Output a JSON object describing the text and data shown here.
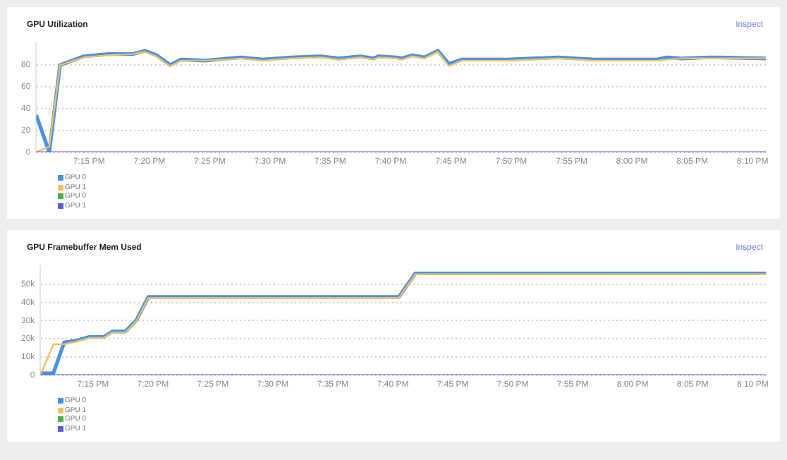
{
  "chart_data": [
    {
      "type": "line",
      "title": "GPU Utilization",
      "annotations": [
        "Inspect"
      ],
      "xlim": [
        19.177,
        20.185
      ],
      "xticks": [
        {
          "value": 19.25,
          "label": "7:15 PM"
        },
        {
          "value": 19.3333,
          "label": "7:20 PM"
        },
        {
          "value": 19.4167,
          "label": "7:25 PM"
        },
        {
          "value": 19.5,
          "label": "7:30 PM"
        },
        {
          "value": 19.5833,
          "label": "7:35 PM"
        },
        {
          "value": 19.6667,
          "label": "7:40 PM"
        },
        {
          "value": 19.75,
          "label": "7:45 PM"
        },
        {
          "value": 19.8333,
          "label": "7:50 PM"
        },
        {
          "value": 19.9167,
          "label": "7:55 PM"
        },
        {
          "value": 20,
          "label": "8:00 PM"
        },
        {
          "value": 20.0833,
          "label": "8:05 PM"
        },
        {
          "value": 20.1667,
          "label": "8:10 PM"
        }
      ],
      "ylim": [
        0,
        100
      ],
      "yticks": [
        0,
        20,
        40,
        60,
        80
      ],
      "grid": "y",
      "legend": "bottom left",
      "marker": "none",
      "line_style": "solid",
      "x": [
        19.177,
        19.195,
        19.21,
        19.243,
        19.277,
        19.31,
        19.327,
        19.343,
        19.362,
        19.377,
        19.41,
        19.443,
        19.46,
        19.49,
        19.53,
        19.57,
        19.595,
        19.625,
        19.643,
        19.65,
        19.675,
        19.682,
        19.697,
        19.713,
        19.732,
        19.747,
        19.765,
        19.828,
        19.898,
        19.948,
        20.035,
        20.048,
        20.068,
        20.108,
        20.185
      ],
      "series": [
        {
          "name": "GPU 0",
          "color": "#4a90e2",
          "values": [
            34,
            0,
            80,
            88,
            90,
            90,
            93,
            89,
            80,
            85,
            84,
            86,
            87,
            85,
            87,
            88,
            86,
            88,
            86,
            88,
            87,
            86,
            89,
            87,
            93,
            81,
            85,
            85,
            87,
            85,
            85,
            87,
            86,
            87,
            86
          ]
        },
        {
          "name": "GPU 1",
          "color": "#f0c060",
          "values": [
            0,
            5,
            80,
            87,
            89,
            90,
            92,
            88,
            79,
            84,
            84,
            85,
            86,
            84,
            86,
            87,
            85,
            87,
            85,
            87,
            86,
            85,
            88,
            86,
            92,
            79,
            84,
            84,
            86,
            84,
            84,
            85,
            86,
            86,
            86
          ]
        },
        {
          "name": "GPU 0",
          "color": "#4caf50",
          "values": [
            null,
            null,
            null,
            null,
            null,
            null,
            null,
            null,
            null,
            null,
            null,
            null,
            null,
            null,
            null,
            null,
            null,
            null,
            null,
            null,
            null,
            null,
            null,
            null,
            null,
            null,
            null,
            null,
            null,
            null,
            null,
            null,
            null,
            null,
            null
          ]
        },
        {
          "name": "GPU 1",
          "color": "#5b5bd6",
          "values": [
            0,
            0,
            0,
            0,
            0,
            0,
            0,
            0,
            0,
            0,
            0,
            0,
            0,
            0,
            0,
            0,
            0,
            0,
            0,
            0,
            0,
            0,
            0,
            0,
            0,
            0,
            0,
            0,
            0,
            0,
            0,
            0,
            0,
            0,
            0
          ]
        }
      ]
    },
    {
      "type": "line",
      "title": "GPU Framebuffer Mem Used",
      "annotations": [
        "Inspect"
      ],
      "xlim": [
        19.177,
        20.185
      ],
      "xticks": [
        {
          "value": 19.25,
          "label": "7:15 PM"
        },
        {
          "value": 19.3333,
          "label": "7:20 PM"
        },
        {
          "value": 19.4167,
          "label": "7:25 PM"
        },
        {
          "value": 19.5,
          "label": "7:30 PM"
        },
        {
          "value": 19.5833,
          "label": "7:35 PM"
        },
        {
          "value": 19.6667,
          "label": "7:40 PM"
        },
        {
          "value": 19.75,
          "label": "7:45 PM"
        },
        {
          "value": 19.8333,
          "label": "7:50 PM"
        },
        {
          "value": 19.9167,
          "label": "7:55 PM"
        },
        {
          "value": 20,
          "label": "8:00 PM"
        },
        {
          "value": 20.0833,
          "label": "8:05 PM"
        },
        {
          "value": 20.1667,
          "label": "8:10 PM"
        }
      ],
      "ylim": [
        0,
        60000
      ],
      "yticks": [
        0,
        {
          "value": 10000,
          "label": "10k"
        },
        {
          "value": 20000,
          "label": "20k"
        },
        {
          "value": 30000,
          "label": "30k"
        },
        {
          "value": 40000,
          "label": "40k"
        },
        {
          "value": 50000,
          "label": "50k"
        }
      ],
      "grid": "y",
      "legend": "bottom left",
      "marker": "none",
      "line_style": "solid",
      "x": [
        19.177,
        19.195,
        19.21,
        19.227,
        19.245,
        19.265,
        19.277,
        19.295,
        19.31,
        19.327,
        19.675,
        19.698,
        20.185
      ],
      "series": [
        {
          "name": "GPU 0",
          "color": "#4a90e2",
          "values": [
            1000,
            1000,
            18000,
            19000,
            21000,
            21000,
            24000,
            24000,
            30000,
            43000,
            43000,
            56000,
            56000
          ]
        },
        {
          "name": "GPU 1",
          "color": "#f0c060",
          "values": [
            0,
            17000,
            17000,
            18500,
            20500,
            20500,
            23500,
            23500,
            29500,
            42500,
            42500,
            55500,
            55500
          ]
        },
        {
          "name": "GPU 0",
          "color": "#4caf50",
          "values": [
            null,
            null,
            null,
            null,
            null,
            null,
            null,
            null,
            null,
            null,
            null,
            null,
            null
          ]
        },
        {
          "name": "GPU 1",
          "color": "#5b5bd6",
          "values": [
            0,
            0,
            0,
            0,
            0,
            0,
            0,
            0,
            0,
            0,
            0,
            0,
            0
          ]
        }
      ]
    }
  ]
}
